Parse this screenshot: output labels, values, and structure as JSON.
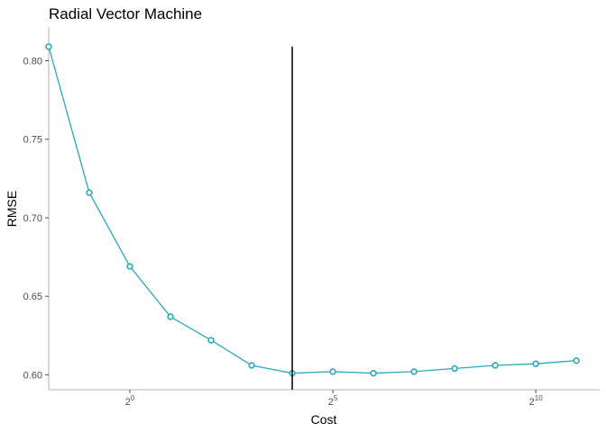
{
  "chart_data": {
    "type": "line",
    "title": "Radial Vector Machine",
    "xlabel": "Cost",
    "ylabel": "RMSE",
    "x_scale": "log2",
    "xlim": [
      0.25,
      3048
    ],
    "ylim": [
      0.5905,
      0.8215
    ],
    "grid": false,
    "legend": "none",
    "x_ticks": [
      {
        "base": "2",
        "exp": "0",
        "value": 1
      },
      {
        "base": "2",
        "exp": "5",
        "value": 32
      },
      {
        "base": "2",
        "exp": "10",
        "value": 1024
      }
    ],
    "y_ticks": [
      {
        "label": "0.60",
        "value": 0.6
      },
      {
        "label": "0.65",
        "value": 0.65
      },
      {
        "label": "0.70",
        "value": 0.7
      },
      {
        "label": "0.75",
        "value": 0.75
      },
      {
        "label": "0.80",
        "value": 0.8
      }
    ],
    "series": [
      {
        "color": "#29aab8",
        "x": [
          0.25,
          0.5,
          1,
          2,
          4,
          8,
          16,
          32,
          64,
          128,
          256,
          512,
          1024,
          2048
        ],
        "y": [
          0.809,
          0.716,
          0.669,
          0.637,
          0.622,
          0.606,
          0.601,
          0.602,
          0.601,
          0.602,
          0.604,
          0.606,
          0.607,
          0.609
        ]
      }
    ],
    "vline": {
      "x": 16,
      "y_top": 0.809,
      "y_bottom": 0.5905,
      "color": "#000000"
    }
  }
}
